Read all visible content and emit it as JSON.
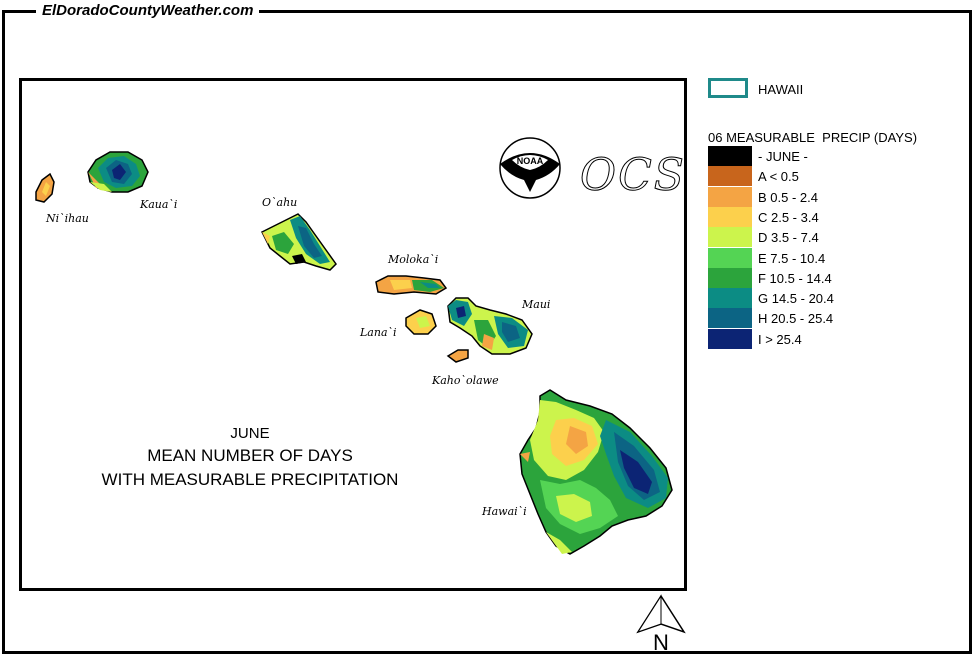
{
  "site_title": "ElDoradoCountyWeather.com",
  "map": {
    "islands": [
      {
        "label": "Ni`ihau"
      },
      {
        "label": "Kaua`i"
      },
      {
        "label": "O`ahu"
      },
      {
        "label": "Moloka`i"
      },
      {
        "label": "Lana`i"
      },
      {
        "label": "Maui"
      },
      {
        "label": "Kaho`olawe"
      },
      {
        "label": "Hawai`i"
      }
    ],
    "title_month": "JUNE",
    "title_line1": "MEAN NUMBER OF DAYS",
    "title_line2": "WITH MEASURABLE PRECIPITATION",
    "logos": {
      "noaa": "NOAA",
      "ocs": "OCS"
    },
    "north_label": "N"
  },
  "legend": {
    "region_label": "HAWAII",
    "region_outline_color": "#1f8a8a",
    "title": "06 MEASURABLE  PRECIP (DAYS)",
    "classes": [
      {
        "label": "- JUNE -",
        "color": "#000000"
      },
      {
        "label": "A < 0.5",
        "color": "#c8651c"
      },
      {
        "label": "B 0.5 - 2.4",
        "color": "#f4a444"
      },
      {
        "label": "C 2.5 - 3.4",
        "color": "#fcd04c"
      },
      {
        "label": "D 3.5 - 7.4",
        "color": "#ccf44c"
      },
      {
        "label": "E 7.5 - 10.4",
        "color": "#54d454"
      },
      {
        "label": "F 10.5 - 14.4",
        "color": "#2ca43c"
      },
      {
        "label": "G 14.5 - 20.4",
        "color": "#0c8c84"
      },
      {
        "label": "H 20.5 - 25.4",
        "color": "#0c6484"
      },
      {
        "label": "I > 25.4",
        "color": "#0c2474"
      }
    ]
  }
}
